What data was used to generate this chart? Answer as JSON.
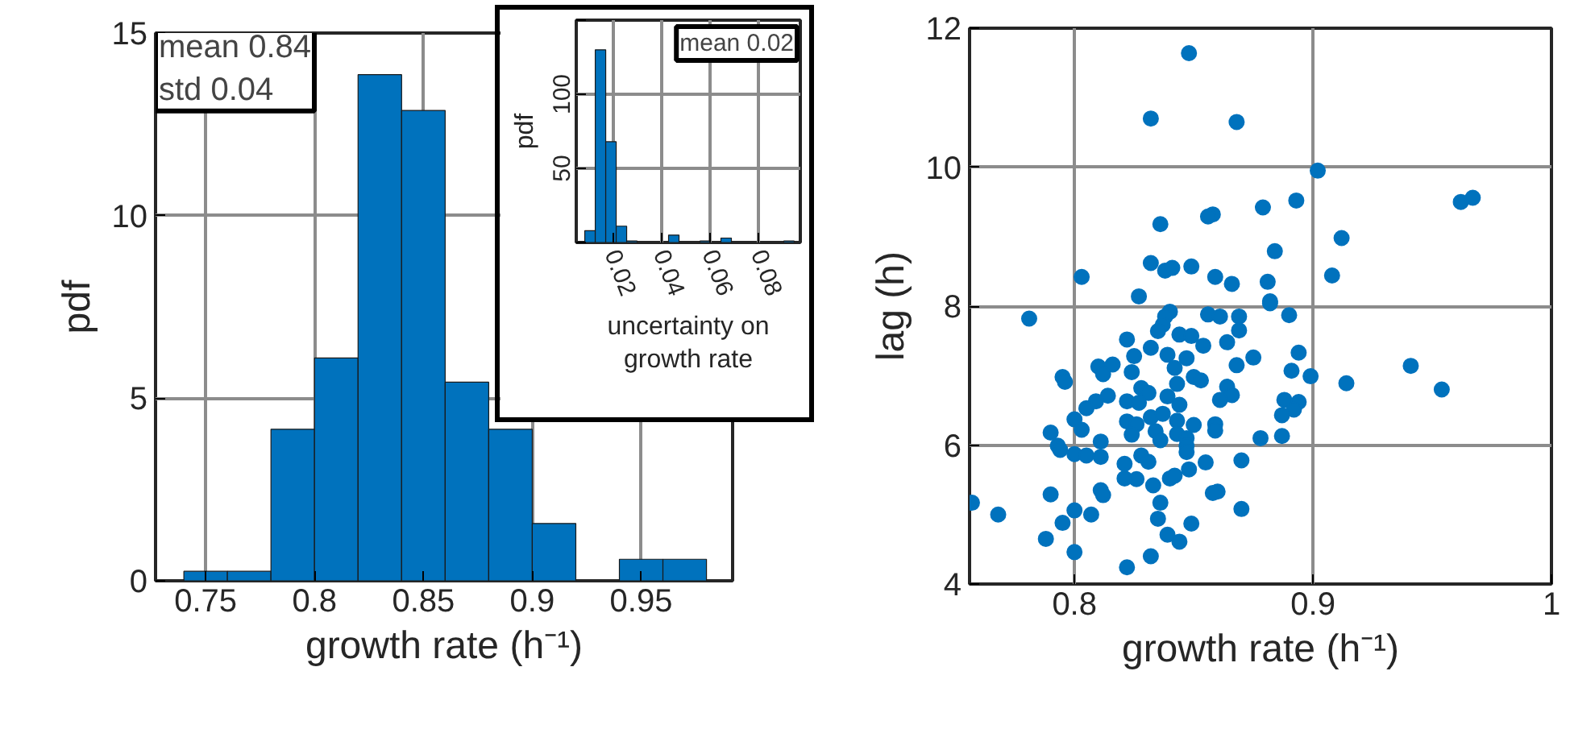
{
  "chart_data": [
    {
      "type": "histogram",
      "xlabel": "growth rate (h⁻¹)",
      "ylabel": "pdf",
      "color": "#0072bd",
      "bins": [
        0.74,
        0.76,
        0.78,
        0.8,
        0.82,
        0.84,
        0.86,
        0.88,
        0.9,
        0.92,
        0.94,
        0.96,
        0.98
      ],
      "values": [
        0.26,
        0.26,
        4.15,
        6.1,
        13.86,
        12.88,
        5.44,
        4.15,
        1.57,
        0,
        0.59,
        0.59
      ],
      "xlim": [
        0.727,
        0.992
      ],
      "ylim": [
        0,
        15
      ],
      "xticks": [
        0.75,
        0.8,
        0.85,
        0.9,
        0.95
      ],
      "yticks": [
        0,
        5,
        10,
        15
      ],
      "grid": true,
      "annotations": [
        "mean 0.84",
        "std 0.04"
      ]
    },
    {
      "type": "histogram",
      "xlabel": "uncertainty on\ngrowth rate",
      "ylabel": "pdf",
      "color": "#0072bd",
      "bins": [
        0.0085,
        0.0128,
        0.0171,
        0.0214,
        0.0257,
        0.03,
        0.0429,
        0.0472,
        0.0558,
        0.0601,
        0.0644,
        0.0687,
        0.0902,
        0.0945
      ],
      "values": [
        8,
        130,
        68,
        11,
        1,
        0,
        5,
        0,
        1,
        0,
        3,
        0,
        1
      ],
      "xlim": [
        0.005,
        0.097
      ],
      "ylim": [
        0,
        150
      ],
      "xticks": [
        0.02,
        0.04,
        0.06,
        0.08
      ],
      "yticks": [
        {
          "value": 0,
          "label": null
        },
        50,
        100,
        {
          "value": 150,
          "label": null
        }
      ],
      "grid": true,
      "annotations": [
        "mean 0.02"
      ]
    },
    {
      "type": "scatter",
      "xlabel": "growth rate (h⁻¹)",
      "ylabel": "lag (h)",
      "color": "#0072bd",
      "marker": "circle",
      "x": [
        0.848,
        0.832,
        0.868,
        0.902,
        0.962,
        0.967,
        0.893,
        0.879,
        0.858,
        0.856,
        0.836,
        0.912,
        0.884,
        0.832,
        0.838,
        0.841,
        0.849,
        0.859,
        0.866,
        0.881,
        0.908,
        0.803,
        0.827,
        0.882,
        0.781,
        0.84,
        0.838,
        0.837,
        0.835,
        0.856,
        0.861,
        0.869,
        0.869,
        0.882,
        0.89,
        0.822,
        0.844,
        0.849,
        0.854,
        0.864,
        0.832,
        0.825,
        0.839,
        0.847,
        0.875,
        0.894,
        0.868,
        0.81,
        0.816,
        0.812,
        0.842,
        0.824,
        0.891,
        0.899,
        0.914,
        0.941,
        0.954,
        0.795,
        0.796,
        0.85,
        0.853,
        0.843,
        0.864,
        0.828,
        0.831,
        0.839,
        0.866,
        0.861,
        0.814,
        0.809,
        0.805,
        0.822,
        0.827,
        0.888,
        0.894,
        0.844,
        0.892,
        0.887,
        0.8,
        0.832,
        0.837,
        0.843,
        0.822,
        0.826,
        0.85,
        0.859,
        0.859,
        0.834,
        0.803,
        0.79,
        0.824,
        0.843,
        0.847,
        0.836,
        0.878,
        0.887,
        0.811,
        0.793,
        0.794,
        0.847,
        0.847,
        0.8,
        0.805,
        0.811,
        0.828,
        0.87,
        0.855,
        0.821,
        0.831,
        0.848,
        0.826,
        0.821,
        0.84,
        0.842,
        0.833,
        0.811,
        0.812,
        0.86,
        0.858,
        0.79,
        0.757,
        0.836,
        0.87,
        0.768,
        0.8,
        0.807,
        0.835,
        0.795,
        0.849,
        0.839,
        0.844,
        0.788,
        0.8,
        0.832,
        0.822
      ],
      "values": [
        11.64,
        10.7,
        10.65,
        9.95,
        9.5,
        9.56,
        9.52,
        9.42,
        9.32,
        9.29,
        9.18,
        8.98,
        8.79,
        8.62,
        8.51,
        8.55,
        8.57,
        8.42,
        8.32,
        8.35,
        8.44,
        8.42,
        8.14,
        8.07,
        7.82,
        7.92,
        7.85,
        7.73,
        7.64,
        7.88,
        7.85,
        7.85,
        7.65,
        8.04,
        7.87,
        7.52,
        7.59,
        7.57,
        7.43,
        7.48,
        7.4,
        7.28,
        7.3,
        7.25,
        7.26,
        7.33,
        7.15,
        7.13,
        7.16,
        7.02,
        7.11,
        7.05,
        7.07,
        6.99,
        6.89,
        7.14,
        6.8,
        6.98,
        6.91,
        6.98,
        6.93,
        6.88,
        6.84,
        6.82,
        6.75,
        6.7,
        6.72,
        6.65,
        6.71,
        6.63,
        6.53,
        6.63,
        6.61,
        6.65,
        6.62,
        6.58,
        6.51,
        6.43,
        6.37,
        6.4,
        6.45,
        6.35,
        6.34,
        6.3,
        6.29,
        6.3,
        6.21,
        6.2,
        6.22,
        6.18,
        6.15,
        6.16,
        6.1,
        6.07,
        6.1,
        6.13,
        6.05,
        5.99,
        5.93,
        5.99,
        5.9,
        5.87,
        5.85,
        5.83,
        5.85,
        5.78,
        5.75,
        5.73,
        5.76,
        5.65,
        5.51,
        5.52,
        5.52,
        5.56,
        5.42,
        5.35,
        5.28,
        5.33,
        5.31,
        5.29,
        5.17,
        5.17,
        5.08,
        5.0,
        5.06,
        5.0,
        4.94,
        4.88,
        4.87,
        4.71,
        4.61,
        4.65,
        4.46,
        4.4,
        4.24
      ],
      "xlim": [
        0.756,
        1.0
      ],
      "ylim": [
        4,
        12
      ],
      "xticks": [
        0.8,
        0.9,
        1
      ],
      "yticks": [
        4,
        6,
        8,
        10,
        12
      ],
      "grid": true
    }
  ]
}
